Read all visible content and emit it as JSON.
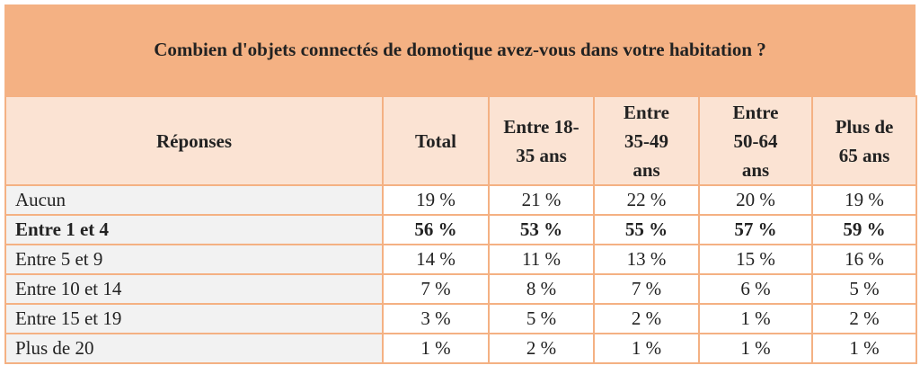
{
  "title": "Combien d'objets connectés de domotique avez-vous dans votre habitation ?",
  "table": {
    "header": [
      "Réponses",
      "Total",
      "Entre 18-\n35 ans",
      "Entre\n35-49\nans",
      "Entre\n50-64\nans",
      "Plus de\n65 ans"
    ],
    "rows": [
      [
        "Aucun",
        "19 %",
        "21 %",
        "22 %",
        "20 %",
        "19 %"
      ],
      [
        "Entre 1 et 4",
        "56 %",
        "53 %",
        "55 %",
        "57 %",
        "59 %"
      ],
      [
        "Entre 5 et 9",
        "14 %",
        "11 %",
        "13 %",
        "15 %",
        "16 %"
      ],
      [
        "Entre 10 et 14",
        "7 %",
        "8 %",
        "7 %",
        "6 %",
        "5 %"
      ],
      [
        "Entre 15 et 19",
        "3 %",
        "5 %",
        "2 %",
        "1 %",
        "2 %"
      ],
      [
        "Plus de 20",
        "1 %",
        "2 %",
        "1 %",
        "1 %",
        "1 %"
      ]
    ],
    "bold_rows": [
      1
    ]
  }
}
